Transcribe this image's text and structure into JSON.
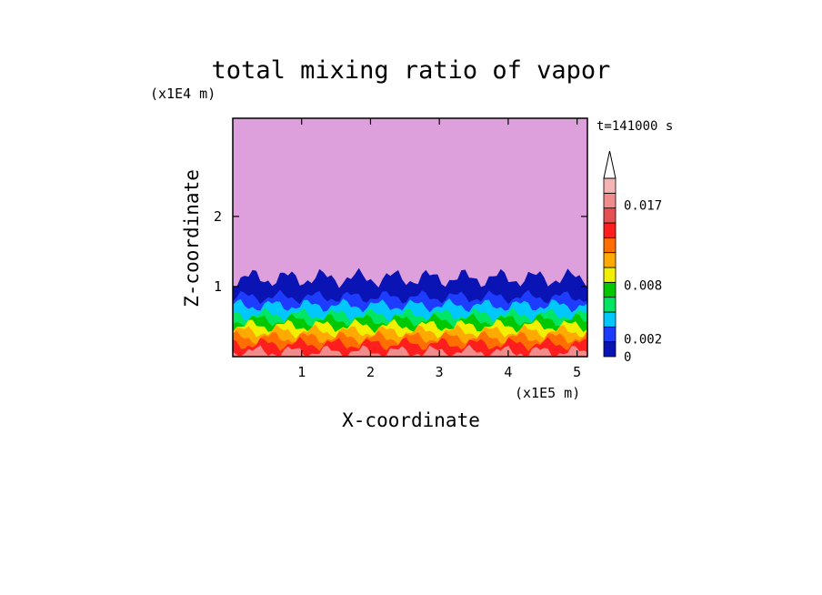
{
  "chart_data": {
    "type": "heatmap",
    "title": "total mixing ratio of vapor",
    "xlabel": "X-coordinate",
    "ylabel": "Z-coordinate",
    "x_unit": "(x1E5 m)",
    "y_unit": "(x1E4 m)",
    "time_label": "t=141000 s",
    "xlim": [
      0,
      5.15
    ],
    "ylim": [
      0,
      3.4
    ],
    "x_ticks": [
      1,
      2,
      3,
      4,
      5
    ],
    "y_ticks": [
      1,
      2
    ],
    "colorbar": {
      "labels": [
        {
          "text": "0.017",
          "value": 0.017
        },
        {
          "text": "0.008",
          "value": 0.008
        },
        {
          "text": "0.002",
          "value": 0.002
        },
        {
          "text": "0",
          "value": 0
        }
      ],
      "levels": [
        {
          "color": "#dda0dd"
        },
        {
          "color": "#0a14b4"
        },
        {
          "color": "#1e3cff"
        },
        {
          "color": "#00c8ff"
        },
        {
          "color": "#00e664"
        },
        {
          "color": "#00c800"
        },
        {
          "color": "#f0f000"
        },
        {
          "color": "#ffaa00"
        },
        {
          "color": "#ff6e00"
        },
        {
          "color": "#ff1e1e"
        },
        {
          "color": "#e65050"
        },
        {
          "color": "#f08c8c"
        },
        {
          "color": "#f5b4b4"
        }
      ],
      "extend_max": true
    },
    "layers": [
      {
        "color": "#dda0dd",
        "top_z": 3.4
      },
      {
        "color": "#0a14b4",
        "top_z": 1.12
      },
      {
        "color": "#1e3cff",
        "top_z": 0.85
      },
      {
        "color": "#00c8ff",
        "top_z": 0.73
      },
      {
        "color": "#00e664",
        "top_z": 0.6
      },
      {
        "color": "#00c800",
        "top_z": 0.52
      },
      {
        "color": "#f0f000",
        "top_z": 0.44
      },
      {
        "color": "#ffaa00",
        "top_z": 0.36
      },
      {
        "color": "#ff6e00",
        "top_z": 0.27
      },
      {
        "color": "#ff1e1e",
        "top_z": 0.18
      },
      {
        "color": "#f08c8c",
        "top_z": 0.07
      }
    ]
  }
}
